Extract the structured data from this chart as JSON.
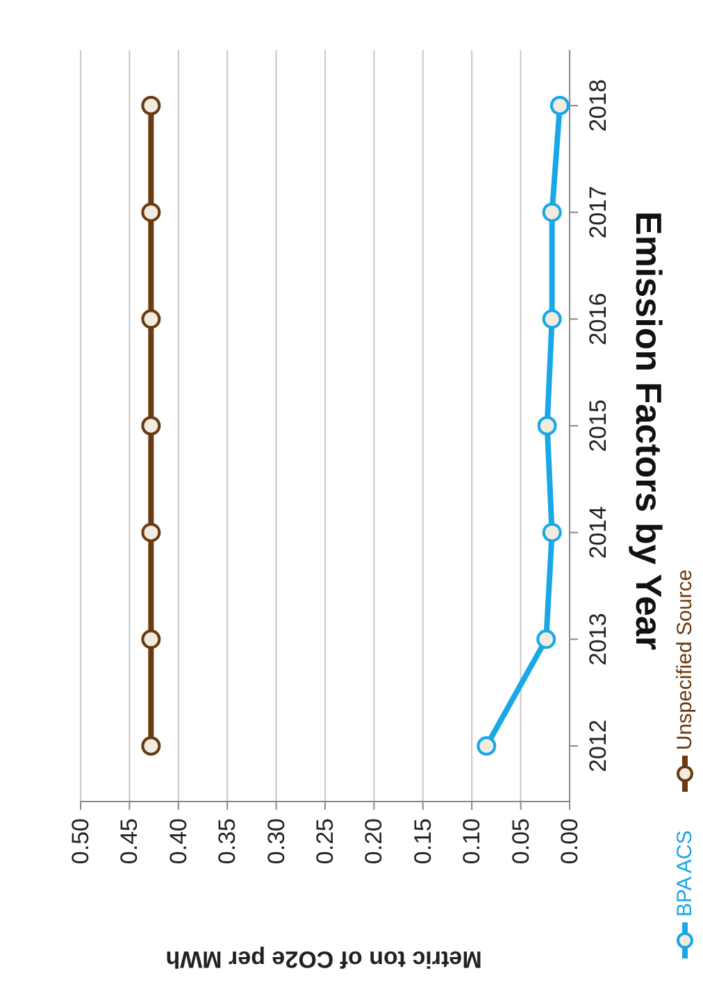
{
  "chart_data": {
    "type": "line",
    "orientation": "horizontal",
    "title": "Emission Factors by Year",
    "xlabel": "Metric ton of CO2e per MWh",
    "categories": [
      "2018",
      "2017",
      "2016",
      "2015",
      "2014",
      "2013",
      "2012"
    ],
    "series": [
      {
        "name": "BPA ACS",
        "color": "#1aa7e6",
        "values": [
          0.01,
          0.018,
          0.018,
          0.023,
          0.018,
          0.024,
          0.085
        ]
      },
      {
        "name": "Unspecified Source",
        "color": "#6b3a10",
        "values": [
          0.428,
          0.428,
          0.428,
          0.428,
          0.428,
          0.428,
          0.428
        ]
      }
    ],
    "xlim": [
      0.5,
      0
    ],
    "xticks": [
      {
        "value": 0.5,
        "label": "0.50"
      },
      {
        "value": 0.45,
        "label": "0.45"
      },
      {
        "value": 0.4,
        "label": "0.40"
      },
      {
        "value": 0.35,
        "label": "0.35"
      },
      {
        "value": 0.3,
        "label": "0.30"
      },
      {
        "value": 0.25,
        "label": "0.25"
      },
      {
        "value": 0.2,
        "label": "0.20"
      },
      {
        "value": 0.15,
        "label": "0.15"
      },
      {
        "value": 0.1,
        "label": "0.10"
      },
      {
        "value": 0.05,
        "label": "0.05"
      },
      {
        "value": 0,
        "label": "0.00"
      }
    ],
    "grid": "x",
    "legend": "right",
    "marker": "circle"
  }
}
